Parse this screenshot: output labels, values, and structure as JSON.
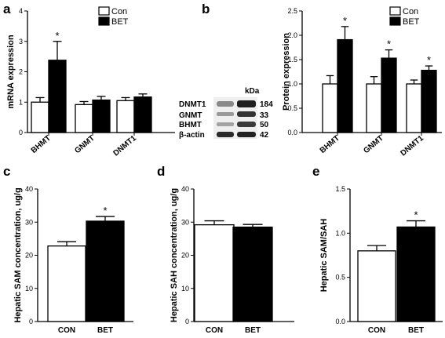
{
  "chart_data": [
    {
      "panel": "a",
      "type": "bar",
      "ylabel": "mRNA expression",
      "ylim": [
        0,
        4
      ],
      "yticks": [
        0,
        1,
        2,
        3,
        4
      ],
      "categories": [
        "BHMT",
        "GNMT",
        "DNMT1"
      ],
      "series": [
        {
          "name": "Con",
          "values": [
            1.0,
            0.92,
            1.05
          ],
          "errors": [
            0.15,
            0.1,
            0.1
          ],
          "color": "#ffffff"
        },
        {
          "name": "BET",
          "values": [
            2.38,
            1.07,
            1.17
          ],
          "errors": [
            0.62,
            0.12,
            0.1
          ],
          "color": "#000000"
        }
      ],
      "significance": [
        {
          "series": 1,
          "category": 0,
          "mark": "*"
        }
      ],
      "legend": "top-right"
    },
    {
      "panel": "b-blot",
      "type": "table",
      "unit_header": "kDa",
      "rows": [
        {
          "protein": "DNMT1",
          "kda": "184"
        },
        {
          "protein": "GNMT",
          "kda": "33"
        },
        {
          "protein": "BHMT",
          "kda": "50"
        },
        {
          "protein": "β-actin",
          "kda": "42"
        }
      ]
    },
    {
      "panel": "b",
      "type": "bar",
      "ylabel": "Protein expression",
      "ylim": [
        0,
        2.5
      ],
      "yticks": [
        "0.0",
        "0.5",
        "1.0",
        "1.5",
        "2.0",
        "2.5"
      ],
      "categories": [
        "BHMT",
        "GNMT",
        "DNMT1"
      ],
      "series": [
        {
          "name": "Con",
          "values": [
            1.0,
            1.0,
            1.0
          ],
          "errors": [
            0.17,
            0.15,
            0.08
          ],
          "color": "#ffffff"
        },
        {
          "name": "BET",
          "values": [
            1.91,
            1.53,
            1.28
          ],
          "errors": [
            0.27,
            0.17,
            0.09
          ],
          "color": "#000000"
        }
      ],
      "significance": [
        {
          "series": 1,
          "category": 0,
          "mark": "*"
        },
        {
          "series": 1,
          "category": 1,
          "mark": "*"
        },
        {
          "series": 1,
          "category": 2,
          "mark": "*"
        }
      ],
      "legend": "top-right"
    },
    {
      "panel": "c",
      "type": "bar",
      "ylabel": "Hepatic SAM concentration, ug/g",
      "ylim": [
        0,
        40
      ],
      "yticks": [
        "0",
        "10",
        "20",
        "30",
        "40"
      ],
      "categories": [
        "CON",
        "BET"
      ],
      "values": [
        22.8,
        30.3
      ],
      "errors": [
        1.3,
        1.4
      ],
      "colors": [
        "#ffffff",
        "#000000"
      ],
      "significance": [
        {
          "category": 1,
          "mark": "*"
        }
      ]
    },
    {
      "panel": "d",
      "type": "bar",
      "ylabel": "Hepatic SAH concentration, ug/g",
      "ylim": [
        0,
        40
      ],
      "yticks": [
        "0",
        "10",
        "20",
        "30",
        "40"
      ],
      "categories": [
        "CON",
        "BET"
      ],
      "values": [
        29.2,
        28.5
      ],
      "errors": [
        1.2,
        0.8
      ],
      "colors": [
        "#ffffff",
        "#000000"
      ],
      "significance": []
    },
    {
      "panel": "e",
      "type": "bar",
      "ylabel": "Hepatic SAM/SAH",
      "ylim": [
        0,
        1.5
      ],
      "yticks": [
        "0.0",
        "0.5",
        "1.0",
        "1.5"
      ],
      "categories": [
        "CON",
        "BET"
      ],
      "values": [
        0.8,
        1.07
      ],
      "errors": [
        0.06,
        0.07
      ],
      "colors": [
        "#ffffff",
        "#000000"
      ],
      "significance": [
        {
          "category": 1,
          "mark": "*"
        }
      ]
    }
  ]
}
